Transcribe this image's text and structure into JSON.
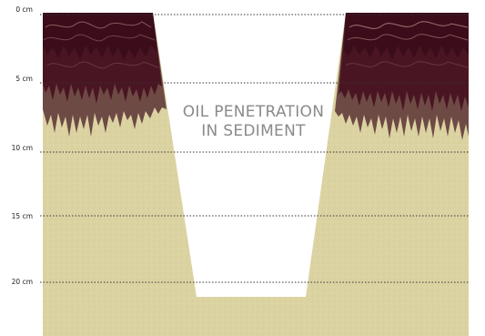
{
  "title": {
    "line1": "OIL PENETRATION",
    "line2": "IN SEDIMENT"
  },
  "depth_axis": {
    "labels": [
      "0 cm",
      "5 cm",
      "10 cm",
      "15 cm",
      "20 cm"
    ]
  },
  "colors": {
    "sediment": "#dcd3a3",
    "oil_dark": "#3b0d1a",
    "oil_mid": "#5a1f2c",
    "oil_brown": "#6e4a45",
    "oil_highlight": "#9c6f6f",
    "gridline": "#333333",
    "label_text": "#8a8a8a"
  }
}
